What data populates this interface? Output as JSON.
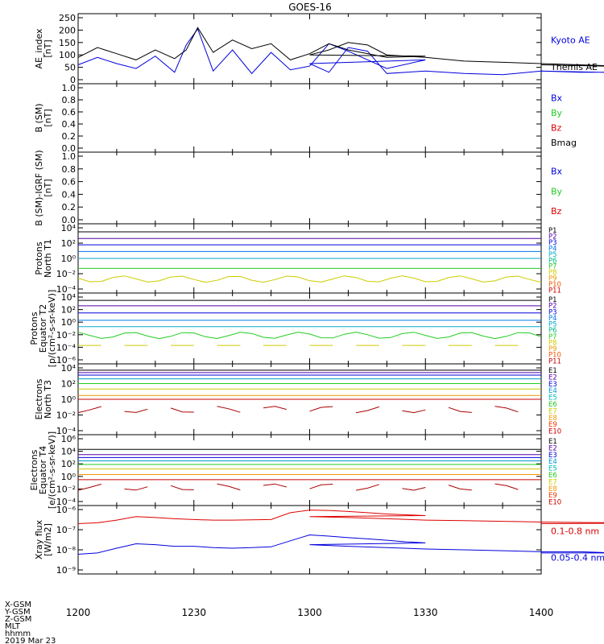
{
  "title": "GOES-16",
  "x_ticks": [
    "1200",
    "1230",
    "1300",
    "1330",
    "1400"
  ],
  "footer": {
    "rows": [
      "X-GSM",
      "Y-GSM",
      "Z-GSM",
      "MLT",
      "hhmm",
      "2019 Mar 23"
    ]
  },
  "chart_data": [
    {
      "type": "line",
      "id": "ae",
      "ylabel": [
        "AE_index",
        "[nT]"
      ],
      "y_ticks": [
        "250",
        "200",
        "150",
        "100",
        "50",
        "0"
      ],
      "ylim": [
        0,
        250
      ],
      "x": [
        1200,
        1205,
        1210,
        1215,
        1220,
        1225,
        1228,
        1231,
        1235,
        1240,
        1245,
        1250,
        1255,
        1260,
        1265,
        1270,
        1280,
        1290,
        1300,
        1305,
        1310,
        1315,
        1320,
        1330,
        1340,
        1350,
        1360,
        1370,
        1380,
        1390,
        1400
      ],
      "series": [
        {
          "name": "Kyoto AE",
          "color": "#0000dd",
          "values": [
            60,
            90,
            65,
            45,
            95,
            30,
            140,
            205,
            35,
            120,
            25,
            110,
            40,
            55,
            145,
            115,
            45,
            80,
            65,
            30,
            130,
            115,
            25,
            35,
            25,
            20,
            35,
            30,
            30,
            25,
            35
          ]
        },
        {
          "name": "Themis AE",
          "color": "#000000",
          "values": [
            90,
            130,
            105,
            80,
            120,
            85,
            120,
            210,
            110,
            160,
            125,
            145,
            80,
            105,
            145,
            120,
            90,
            95,
            100,
            120,
            150,
            140,
            100,
            90,
            75,
            70,
            65,
            60,
            55,
            50,
            60
          ]
        }
      ]
    },
    {
      "type": "line",
      "id": "bsm",
      "ylabel": [
        "B (SM)",
        "[nT]"
      ],
      "y_ticks": [
        "1.0",
        "0.8",
        "0.6",
        "0.4",
        "0.2",
        "0.0"
      ],
      "ylim": [
        0,
        1
      ],
      "legend": [
        {
          "name": "Bx",
          "color": "#0000dd"
        },
        {
          "name": "By",
          "color": "#22cc22"
        },
        {
          "name": "Bz",
          "color": "#dd0000"
        },
        {
          "name": "Bmag",
          "color": "#000000"
        }
      ]
    },
    {
      "type": "line",
      "id": "bigrf",
      "ylabel": [
        "B (SM)-IGRF (SM)",
        "[nT]"
      ],
      "y_ticks": [
        "1.0",
        "0.8",
        "0.6",
        "0.4",
        "0.2",
        "0.0"
      ],
      "ylim": [
        0,
        1
      ],
      "legend": [
        {
          "name": "Bx",
          "color": "#0000dd"
        },
        {
          "name": "By",
          "color": "#22cc22"
        },
        {
          "name": "Bz",
          "color": "#dd0000"
        }
      ]
    },
    {
      "type": "line",
      "id": "pn",
      "scale": "log",
      "ylabel": [
        "Protons",
        "North T1"
      ],
      "y_ticks": [
        "10⁴",
        "10²",
        "10⁰",
        "10⁻²",
        "10⁻⁴"
      ],
      "ylim": [
        0.0001,
        10000
      ],
      "legend": [
        {
          "name": "P1",
          "color": "#000000"
        },
        {
          "name": "P2",
          "color": "#5500aa"
        },
        {
          "name": "P3",
          "color": "#0000dd"
        },
        {
          "name": "P4",
          "color": "#0077ee"
        },
        {
          "name": "P5",
          "color": "#00aacc"
        },
        {
          "name": "P6",
          "color": "#00bb88"
        },
        {
          "name": "P7",
          "color": "#22cc22"
        },
        {
          "name": "P8",
          "color": "#cccc00"
        },
        {
          "name": "P9",
          "color": "#ee9900"
        },
        {
          "name": "P10",
          "color": "#ee5500"
        },
        {
          "name": "P11",
          "color": "#cc0000"
        }
      ],
      "series": [
        {
          "color": "#000000",
          "level": 3000
        },
        {
          "color": "#5500aa",
          "level": 400
        },
        {
          "color": "#0000dd",
          "level": 60
        },
        {
          "color": "#0077ee",
          "level": 8
        },
        {
          "color": "#00aacc",
          "level": 1
        },
        {
          "color": "#22cc22",
          "level": 0.05
        },
        {
          "color": "#cccc00",
          "level": 0.002,
          "wiggle": true
        }
      ]
    },
    {
      "type": "line",
      "id": "pe",
      "scale": "log",
      "ylabel": [
        "Protons",
        "Equator T2",
        "[p/(cm²-s-sr-keV)]"
      ],
      "y_ticks": [
        "10⁴",
        "10²",
        "10⁰",
        "10⁻²",
        "10⁻⁴",
        "10⁻⁶"
      ],
      "ylim": [
        1e-06,
        10000
      ],
      "legend": [
        {
          "name": "P1",
          "color": "#000000"
        },
        {
          "name": "P2",
          "color": "#5500aa"
        },
        {
          "name": "P3",
          "color": "#0000dd"
        },
        {
          "name": "P4",
          "color": "#0077ee"
        },
        {
          "name": "P5",
          "color": "#00aacc"
        },
        {
          "name": "P6",
          "color": "#00bb88"
        },
        {
          "name": "P7",
          "color": "#22cc22"
        },
        {
          "name": "P8",
          "color": "#cccc00"
        },
        {
          "name": "P9",
          "color": "#ee9900"
        },
        {
          "name": "P10",
          "color": "#ee5500"
        },
        {
          "name": "P11",
          "color": "#cc0000"
        }
      ],
      "series": [
        {
          "color": "#000000",
          "level": 3000
        },
        {
          "color": "#5500aa",
          "level": 400
        },
        {
          "color": "#0000dd",
          "level": 30
        },
        {
          "color": "#0077ee",
          "level": 2
        },
        {
          "color": "#00aacc",
          "level": 0.2
        },
        {
          "color": "#22cc22",
          "level": 0.008,
          "wiggle": true
        },
        {
          "color": "#cccc00",
          "level": 0.0002,
          "broken": true
        }
      ]
    },
    {
      "type": "line",
      "id": "en",
      "scale": "log",
      "ylabel": [
        "Electrons",
        "North T3"
      ],
      "y_ticks": [
        "10⁴",
        "10²",
        "10⁰",
        "10⁻²",
        "10⁻⁴"
      ],
      "ylim": [
        0.0001,
        10000
      ],
      "legend": [
        {
          "name": "E1",
          "color": "#000000"
        },
        {
          "name": "E2",
          "color": "#5500aa"
        },
        {
          "name": "E3",
          "color": "#0000dd"
        },
        {
          "name": "E4",
          "color": "#0099cc"
        },
        {
          "name": "E5",
          "color": "#00bbbb"
        },
        {
          "name": "E6",
          "color": "#22cc22"
        },
        {
          "name": "E7",
          "color": "#cccc00"
        },
        {
          "name": "E8",
          "color": "#ee9900"
        },
        {
          "name": "E9",
          "color": "#ee3300"
        },
        {
          "name": "E10",
          "color": "#cc0000"
        }
      ],
      "series": [
        {
          "color": "#000000",
          "level": 5000
        },
        {
          "color": "#5500aa",
          "level": 2500
        },
        {
          "color": "#0000dd",
          "level": 1200
        },
        {
          "color": "#0099cc",
          "level": 400
        },
        {
          "color": "#22cc22",
          "level": 100
        },
        {
          "color": "#cccc00",
          "level": 20
        },
        {
          "color": "#ee9900",
          "level": 3
        },
        {
          "color": "#cc0000",
          "level": 1
        },
        {
          "color": "#aa0000",
          "level": 0.05,
          "broken": true,
          "wiggle": true
        }
      ]
    },
    {
      "type": "line",
      "id": "ee",
      "scale": "log",
      "ylabel": [
        "Electrons",
        "Equator T4",
        "[e/(cm²-s-sr-keV)]"
      ],
      "y_ticks": [
        "10⁶",
        "10⁴",
        "10²",
        "10⁰",
        "10⁻²",
        "10⁻⁴"
      ],
      "ylim": [
        0.0001,
        1000000
      ],
      "legend": [
        {
          "name": "E1",
          "color": "#000000"
        },
        {
          "name": "E2",
          "color": "#5500aa"
        },
        {
          "name": "E3",
          "color": "#0000dd"
        },
        {
          "name": "E4",
          "color": "#0099cc"
        },
        {
          "name": "E5",
          "color": "#00bbbb"
        },
        {
          "name": "E6",
          "color": "#22cc22"
        },
        {
          "name": "E7",
          "color": "#cccc00"
        },
        {
          "name": "E8",
          "color": "#ee9900"
        },
        {
          "name": "E9",
          "color": "#ee3300"
        },
        {
          "name": "E10",
          "color": "#cc0000"
        }
      ],
      "series": [
        {
          "color": "#000000",
          "level": 20000
        },
        {
          "color": "#5500aa",
          "level": 3000
        },
        {
          "color": "#0000dd",
          "level": 1000
        },
        {
          "color": "#0099cc",
          "level": 300
        },
        {
          "color": "#22cc22",
          "level": 80
        },
        {
          "color": "#cccc00",
          "level": 15
        },
        {
          "color": "#ee9900",
          "level": 2
        },
        {
          "color": "#cc0000",
          "level": 0.3
        },
        {
          "color": "#aa0000",
          "level": 0.02,
          "broken": true,
          "wiggle": true
        }
      ]
    },
    {
      "type": "line",
      "id": "xray",
      "scale": "log",
      "ylabel": [
        "Xray flux",
        "[W/m2]"
      ],
      "y_ticks": [
        "10⁻⁶",
        "10⁻⁷",
        "10⁻⁸",
        "10⁻⁹"
      ],
      "ylim": [
        1e-09,
        1e-06
      ],
      "x": [
        1200,
        1205,
        1210,
        1215,
        1220,
        1225,
        1230,
        1235,
        1240,
        1245,
        1250,
        1255,
        1260,
        1265,
        1270,
        1275,
        1280,
        1285,
        1290,
        1300,
        1310,
        1320,
        1330,
        1340,
        1350,
        1360,
        1370,
        1380,
        1390,
        1400
      ],
      "series": [
        {
          "name": "0.1-0.8 nm",
          "color": "#dd0000",
          "values": [
            2e-07,
            2.2e-07,
            3e-07,
            4.5e-07,
            4e-07,
            3.5e-07,
            3.2e-07,
            3e-07,
            3e-07,
            3.1e-07,
            3.2e-07,
            7e-07,
            9.5e-07,
            9e-07,
            8e-07,
            7e-07,
            6e-07,
            5.5e-07,
            5e-07,
            4.5e-07,
            4e-07,
            3.5e-07,
            3e-07,
            2.8e-07,
            2.6e-07,
            2.4e-07,
            2.3e-07,
            2.2e-07,
            2.1e-07,
            2e-07
          ]
        },
        {
          "name": "0.05-0.4 nm",
          "color": "#0000dd",
          "values": [
            6e-09,
            7e-09,
            1.2e-08,
            2e-08,
            1.8e-08,
            1.5e-08,
            1.5e-08,
            1.3e-08,
            1.2e-08,
            1.3e-08,
            1.4e-08,
            2.8e-08,
            5.5e-08,
            4.8e-08,
            4e-08,
            3.5e-08,
            3e-08,
            2.5e-08,
            2.2e-08,
            1.8e-08,
            1.5e-08,
            1.3e-08,
            1.1e-08,
            1e-08,
            9e-09,
            8e-09,
            8e-09,
            7e-09,
            7e-09,
            7e-09
          ]
        }
      ]
    }
  ]
}
